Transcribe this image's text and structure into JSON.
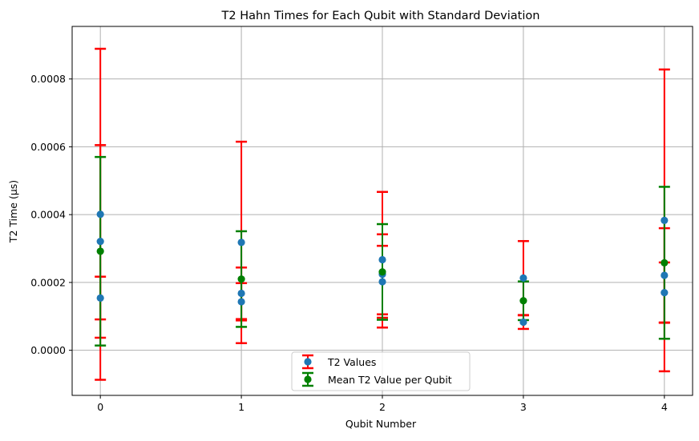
{
  "chart_data": {
    "type": "scatter",
    "title": "T2 Hahn Times for Each Qubit with Standard Deviation",
    "xlabel": "Qubit Number",
    "ylabel": "T2 Time (µs)",
    "xlim": [
      -0.2,
      4.2
    ],
    "ylim": [
      -0.000133,
      0.000955
    ],
    "xticks": [
      0,
      1,
      2,
      3,
      4
    ],
    "xtick_labels": [
      "0",
      "1",
      "2",
      "3",
      "4"
    ],
    "yticks": [
      0.0,
      0.0002,
      0.0004,
      0.0006,
      0.0008
    ],
    "ytick_labels": [
      "0.0000",
      "0.0002",
      "0.0004",
      "0.0006",
      "0.0008"
    ],
    "grid": true,
    "legend_position": "bottom-center",
    "series": [
      {
        "name": "T2 Values",
        "marker_color": "#1f77b4",
        "errorbar_color": "#ff0000",
        "points": [
          {
            "x": 0,
            "y": 0.000401,
            "err": 0.000488
          },
          {
            "x": 0,
            "y": 0.000321,
            "err": 0.000284
          },
          {
            "x": 0,
            "y": 0.000154,
            "err": 6.3e-05
          },
          {
            "x": 1,
            "y": 0.000318,
            "err": 0.000297
          },
          {
            "x": 1,
            "y": 0.000168,
            "err": 7.6e-05
          },
          {
            "x": 1,
            "y": 0.000143,
            "err": 5.5e-05
          },
          {
            "x": 2,
            "y": 0.000267,
            "err": 0.0002
          },
          {
            "x": 2,
            "y": 0.000224,
            "err": 0.000118
          },
          {
            "x": 2,
            "y": 0.000202,
            "err": 0.000106
          },
          {
            "x": 3,
            "y": 0.000213,
            "err": 0.000109
          },
          {
            "x": 3,
            "y": 8.3e-05,
            "err": 2e-05
          },
          {
            "x": 4,
            "y": 0.000383,
            "err": 0.000445
          },
          {
            "x": 4,
            "y": 0.000221,
            "err": 0.000139
          },
          {
            "x": 4,
            "y": 0.00017,
            "err": 8.9e-05
          }
        ]
      },
      {
        "name": "Mean T2 Value per Qubit",
        "marker_color": "#008000",
        "errorbar_color": "#008000",
        "points": [
          {
            "x": 0,
            "y": 0.000292,
            "err": 0.000278
          },
          {
            "x": 1,
            "y": 0.00021,
            "err": 0.000141
          },
          {
            "x": 2,
            "y": 0.000231,
            "err": 0.000141
          },
          {
            "x": 3,
            "y": 0.000146,
            "err": 5.7e-05
          },
          {
            "x": 4,
            "y": 0.000258,
            "err": 0.000224
          }
        ]
      }
    ]
  }
}
